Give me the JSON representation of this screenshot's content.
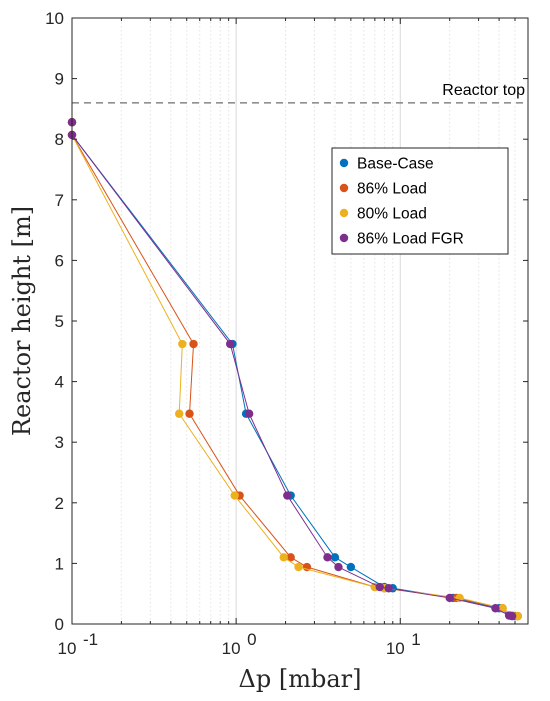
{
  "chart_data": {
    "type": "line",
    "xlabel": "Δp [mbar]",
    "ylabel": "Reactor height [m]",
    "xscale": "log",
    "xlim": [
      0.1,
      60
    ],
    "ylim": [
      0,
      10
    ],
    "grid": "x-major-and-minor",
    "x_ticks": [
      {
        "value": 0.1,
        "base": "10",
        "exp": "-1"
      },
      {
        "value": 1,
        "base": "10",
        "exp": "0"
      },
      {
        "value": 10,
        "base": "10",
        "exp": "1"
      }
    ],
    "y_ticks": [
      0,
      1,
      2,
      3,
      4,
      5,
      6,
      7,
      8,
      9,
      10
    ],
    "reference_line": {
      "y": 8.6,
      "label": "Reactor top",
      "color": "#6e6e6e"
    },
    "legend_position": "upper-right",
    "series": [
      {
        "name": "Base-Case",
        "color": "#0072BD",
        "x": [
          0.1,
          0.1,
          0.95,
          1.15,
          2.15,
          4.0,
          5.0,
          8.0,
          9.0,
          21.0,
          40.0,
          47.0,
          50.0
        ],
        "y": [
          8.28,
          8.07,
          4.62,
          3.47,
          2.12,
          1.1,
          0.94,
          0.61,
          0.59,
          0.43,
          0.26,
          0.14,
          0.13
        ]
      },
      {
        "name": "86% Load",
        "color": "#D95319",
        "x": [
          0.1,
          0.1,
          0.55,
          0.52,
          1.05,
          2.15,
          2.7,
          7.0,
          8.0,
          22.0,
          42.0,
          48.0,
          52.0
        ],
        "y": [
          8.28,
          8.07,
          4.62,
          3.47,
          2.12,
          1.1,
          0.94,
          0.61,
          0.59,
          0.43,
          0.26,
          0.14,
          0.13
        ]
      },
      {
        "name": "80% Load",
        "color": "#EDB120",
        "x": [
          0.1,
          0.1,
          0.47,
          0.45,
          0.98,
          1.95,
          2.4,
          7.0,
          8.0,
          23.0,
          42.0,
          48.0,
          52.0
        ],
        "y": [
          8.28,
          8.07,
          4.62,
          3.47,
          2.12,
          1.1,
          0.94,
          0.61,
          0.59,
          0.43,
          0.26,
          0.14,
          0.13
        ]
      },
      {
        "name": "86% Load FGR",
        "color": "#7E2F8E",
        "x": [
          0.1,
          0.1,
          0.92,
          1.2,
          2.05,
          3.6,
          4.2,
          7.5,
          8.5,
          20.0,
          38.0,
          46.0,
          48.0
        ],
        "y": [
          8.28,
          8.07,
          4.62,
          3.47,
          2.12,
          1.1,
          0.94,
          0.61,
          0.59,
          0.43,
          0.26,
          0.14,
          0.13
        ]
      }
    ]
  }
}
